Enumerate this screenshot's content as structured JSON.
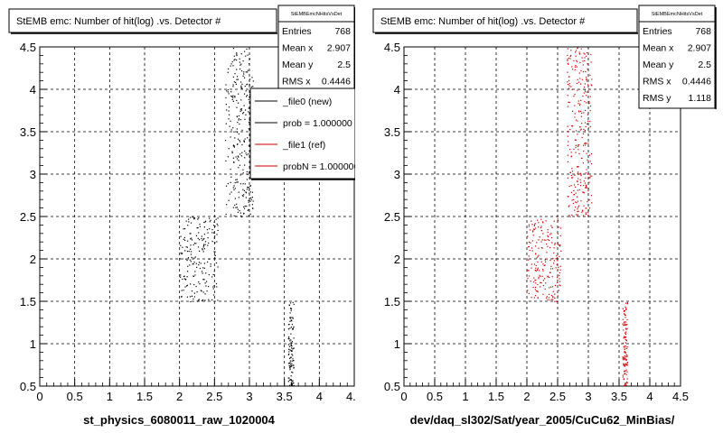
{
  "footer_text": "",
  "colors": {
    "new": "#000000",
    "ref": "#cc0000",
    "grid": "#000000"
  },
  "chart_data": [
    {
      "type": "scatter",
      "title": "StEMB emc: Number of hit(log) .vs. Detector #",
      "xlabel": "st_physics_6080011_raw_1020004",
      "ylabel": "",
      "xlim": [
        0,
        4.5
      ],
      "ylim": [
        0.5,
        4.5
      ],
      "x_ticks": [
        "0",
        "0.5",
        "1",
        "1.5",
        "2",
        "2.5",
        "3",
        "3.5",
        "4",
        "4.5"
      ],
      "y_ticks": [
        "0.5",
        "1",
        "1.5",
        "2",
        "2.5",
        "3",
        "3.5",
        "4",
        "4.5"
      ],
      "grid": true,
      "stats": {
        "name": "StEMBEmcNHitsVsDet",
        "rows": [
          {
            "label": "Entries",
            "value": "768"
          },
          {
            "label": "Mean x",
            "value": "2.907"
          },
          {
            "label": "Mean y",
            "value": "2.5"
          },
          {
            "label": "RMS x",
            "value": "0.4446"
          }
        ]
      },
      "legend": [
        {
          "label": "_file0 (new)",
          "color": "#000000"
        },
        {
          "label": "prob = 1.000000",
          "color": "#000000"
        },
        {
          "label": "_file1 (ref)",
          "color": "#cc0000"
        },
        {
          "label": "probN = 1.000000",
          "color": "#cc0000"
        }
      ],
      "point_color": "#000000",
      "clusters": [
        {
          "x_range": [
            2.65,
            3.05
          ],
          "y_range": [
            2.5,
            4.5
          ],
          "count": 280
        },
        {
          "x_range": [
            2.0,
            2.55
          ],
          "y_range": [
            1.5,
            2.5
          ],
          "count": 200
        },
        {
          "x_range": [
            3.55,
            3.63
          ],
          "y_range": [
            0.5,
            1.5
          ],
          "count": 110
        }
      ]
    },
    {
      "type": "scatter",
      "title": "StEMB emc: Number of hit(log) .vs. Detector #",
      "xlabel": "dev/daq_sl302/Sat/year_2005/CuCu62_MinBias/",
      "ylabel": "",
      "xlim": [
        0,
        4.5
      ],
      "ylim": [
        0.5,
        4.5
      ],
      "x_ticks": [
        "0",
        "0.5",
        "1",
        "1.5",
        "2",
        "2.5",
        "3",
        "3.5",
        "4",
        "4.5"
      ],
      "y_ticks": [
        "0.5",
        "1",
        "1.5",
        "2",
        "2.5",
        "3",
        "3.5",
        "4",
        "4.5"
      ],
      "grid": true,
      "stats": {
        "name": "StEMBEmcNHitsVsDet",
        "rows": [
          {
            "label": "Entries",
            "value": "768"
          },
          {
            "label": "Mean x",
            "value": "2.907"
          },
          {
            "label": "Mean y",
            "value": "2.5"
          },
          {
            "label": "RMS x",
            "value": "0.4446"
          },
          {
            "label": "RMS y",
            "value": "1.118"
          }
        ]
      },
      "legend": [],
      "point_color": "#cc0000",
      "clusters": [
        {
          "x_range": [
            2.65,
            3.05
          ],
          "y_range": [
            2.5,
            4.5
          ],
          "count": 280
        },
        {
          "x_range": [
            2.0,
            2.55
          ],
          "y_range": [
            1.5,
            2.5
          ],
          "count": 200
        },
        {
          "x_range": [
            3.55,
            3.63
          ],
          "y_range": [
            0.5,
            1.5
          ],
          "count": 110
        }
      ]
    }
  ]
}
